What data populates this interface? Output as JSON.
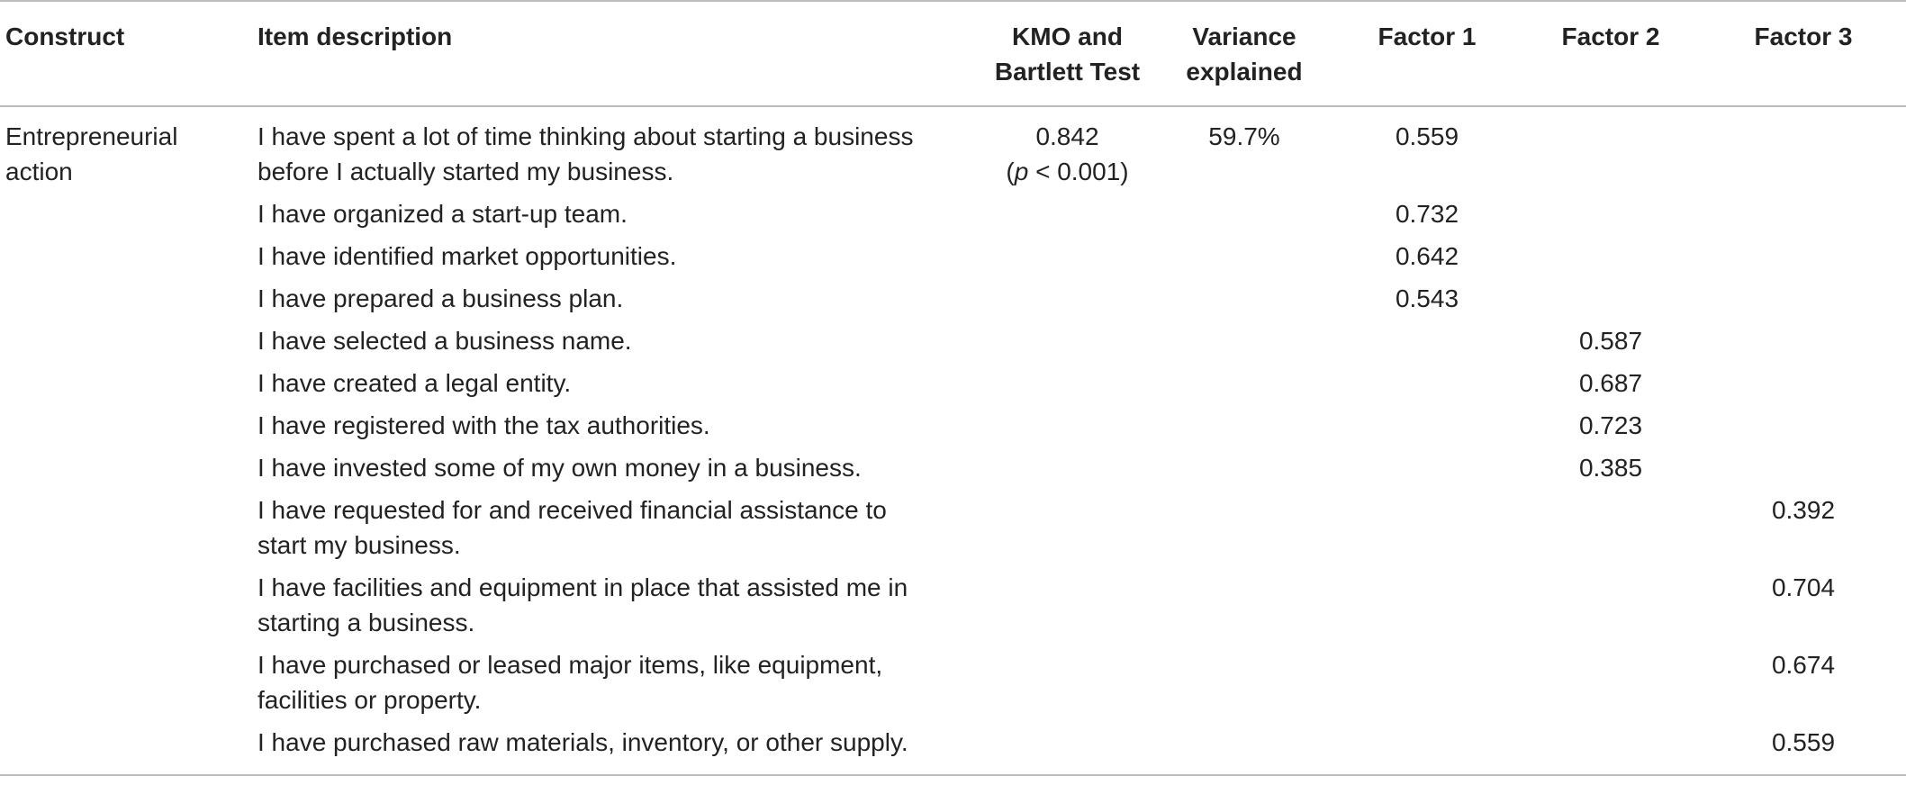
{
  "headers": {
    "construct": "Construct",
    "item": "Item description",
    "kmo_line1": "KMO and",
    "kmo_line2": "Bartlett Test",
    "var_line1": "Variance",
    "var_line2": "explained",
    "f1": "Factor 1",
    "f2": "Factor 2",
    "f3": "Factor 3"
  },
  "construct": {
    "line1": "Entrepreneurial",
    "line2": "action"
  },
  "kmo": {
    "value": "0.842",
    "p_symbol": "p",
    "p_open": "(",
    "p_rest": " < 0.001)"
  },
  "variance": "59.7%",
  "rows": [
    {
      "line1": "I have spent a lot of time thinking about starting a business",
      "line2": "before I actually started my business.",
      "f1": "0.559",
      "f2": "",
      "f3": ""
    },
    {
      "line1": "I have organized a start-up team.",
      "line2": "",
      "f1": "0.732",
      "f2": "",
      "f3": ""
    },
    {
      "line1": "I have identified market opportunities.",
      "line2": "",
      "f1": "0.642",
      "f2": "",
      "f3": ""
    },
    {
      "line1": "I have prepared a business plan.",
      "line2": "",
      "f1": "0.543",
      "f2": "",
      "f3": ""
    },
    {
      "line1": "I have selected a business name.",
      "line2": "",
      "f1": "",
      "f2": "0.587",
      "f3": ""
    },
    {
      "line1": "I have created a legal entity.",
      "line2": "",
      "f1": "",
      "f2": "0.687",
      "f3": ""
    },
    {
      "line1": "I have registered with the tax authorities.",
      "line2": "",
      "f1": "",
      "f2": "0.723",
      "f3": ""
    },
    {
      "line1": "I have invested some of my own money in a business.",
      "line2": "",
      "f1": "",
      "f2": "0.385",
      "f3": ""
    },
    {
      "line1": "I have requested for and received financial assistance to",
      "line2": "start my business.",
      "f1": "",
      "f2": "",
      "f3": "0.392"
    },
    {
      "line1": "I have facilities and equipment in place that assisted me in",
      "line2": "starting a business.",
      "f1": "",
      "f2": "",
      "f3": "0.704"
    },
    {
      "line1": "I have purchased or leased major items, like equipment,",
      "line2": "facilities or property.",
      "f1": "",
      "f2": "",
      "f3": "0.674"
    },
    {
      "line1": "I have purchased raw materials, inventory, or other supply.",
      "line2": "",
      "f1": "",
      "f2": "",
      "f3": "0.559"
    }
  ]
}
